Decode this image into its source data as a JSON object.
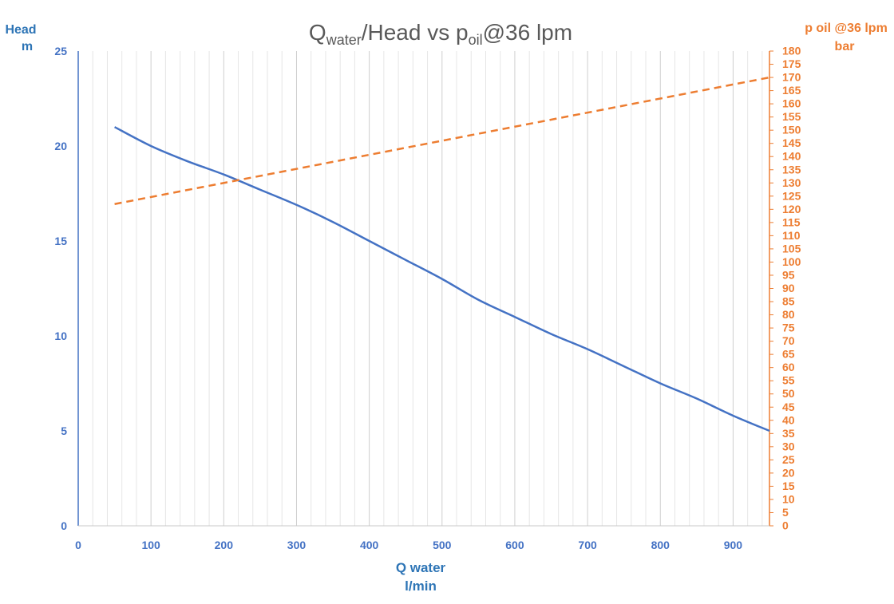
{
  "chart_data": {
    "type": "line",
    "title": {
      "main": "Q",
      "sub1": "water",
      "mid": "/Head vs p",
      "sub2": "oil",
      "tail": "@36 lpm"
    },
    "x_axis": {
      "label_line1": "Q water",
      "label_line2": "l/min",
      "range": [
        0,
        950
      ],
      "ticks": [
        0,
        100,
        200,
        300,
        400,
        500,
        600,
        700,
        800,
        900
      ],
      "minor_step": 20
    },
    "y_left": {
      "label_line1": "Head",
      "label_line2": "m",
      "range": [
        0,
        25
      ],
      "ticks": [
        0,
        5,
        10,
        15,
        20,
        25
      ]
    },
    "y_right": {
      "label_line1": "p oil @36 lpm",
      "label_line2": "bar",
      "range": [
        0,
        180
      ],
      "ticks": [
        0,
        5,
        10,
        15,
        20,
        25,
        30,
        35,
        40,
        45,
        50,
        55,
        60,
        65,
        70,
        75,
        80,
        85,
        90,
        95,
        100,
        105,
        110,
        115,
        120,
        125,
        130,
        135,
        140,
        145,
        150,
        155,
        160,
        165,
        170,
        175,
        180
      ]
    },
    "grid": "vertical",
    "series": [
      {
        "axis": "left",
        "style": "solid",
        "color": "#4472C4",
        "x": [
          50,
          100,
          150,
          200,
          250,
          300,
          350,
          400,
          450,
          500,
          550,
          600,
          650,
          700,
          750,
          800,
          850,
          900,
          950
        ],
        "y": [
          21,
          20,
          19.2,
          18.5,
          17.7,
          16.9,
          16.0,
          15.0,
          14.0,
          13.0,
          11.9,
          11.0,
          10.1,
          9.3,
          8.4,
          7.5,
          6.7,
          5.8,
          5.0
        ]
      },
      {
        "axis": "right",
        "style": "dashed",
        "color": "#ED7D31",
        "x": [
          50,
          950
        ],
        "y": [
          122,
          170
        ]
      }
    ]
  }
}
